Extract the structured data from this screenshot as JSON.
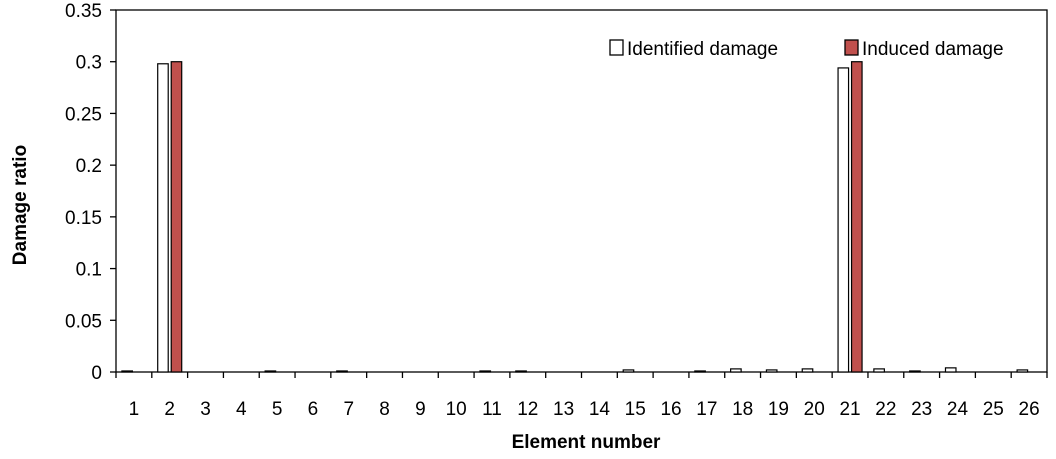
{
  "chart_data": {
    "type": "bar",
    "categories": [
      "1",
      "2",
      "3",
      "4",
      "5",
      "6",
      "7",
      "8",
      "9",
      "10",
      "11",
      "12",
      "13",
      "14",
      "15",
      "16",
      "17",
      "18",
      "19",
      "20",
      "21",
      "22",
      "23",
      "24",
      "25",
      "26"
    ],
    "series": [
      {
        "name": "Identified damage",
        "color": "#ffffff",
        "values": [
          0.001,
          0.298,
          0.0,
          0.0,
          0.001,
          0.0,
          0.001,
          0.0,
          0.0,
          0.0,
          0.001,
          0.001,
          0.0,
          0.0,
          0.002,
          0.0,
          0.001,
          0.003,
          0.002,
          0.003,
          0.294,
          0.003,
          0.001,
          0.004,
          0.0,
          0.002
        ]
      },
      {
        "name": "Induced damage",
        "color": "#c0504d",
        "values": [
          0,
          0.3,
          0,
          0,
          0,
          0,
          0,
          0,
          0,
          0,
          0,
          0,
          0,
          0,
          0,
          0,
          0,
          0,
          0,
          0,
          0.3,
          0,
          0,
          0,
          0,
          0
        ]
      }
    ],
    "xlabel": "Element number",
    "ylabel": "Damage ratio",
    "ylim": [
      0,
      0.35
    ],
    "yticks": [
      "0",
      "0.05",
      "0.1",
      "0.15",
      "0.2",
      "0.25",
      "0.3",
      "0.35"
    ],
    "grid": false,
    "legend_position": "top-right"
  }
}
